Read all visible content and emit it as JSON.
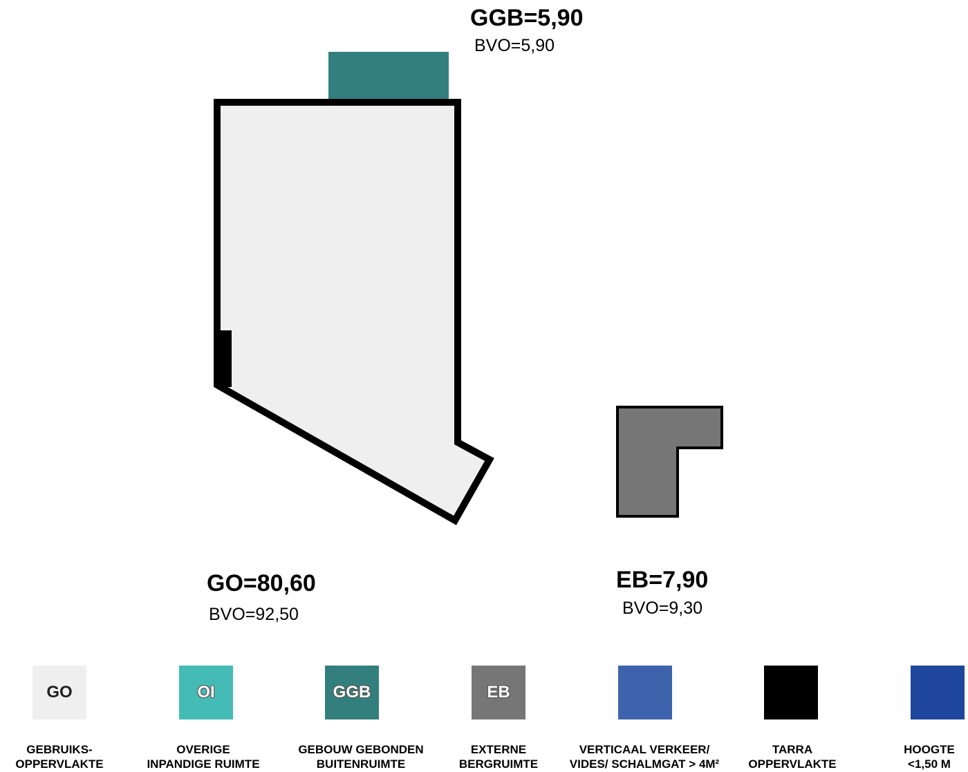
{
  "areas": {
    "ggb": {
      "title": "GGB=5,90",
      "bvo": "BVO=5,90"
    },
    "go": {
      "title": "GO=80,60",
      "bvo": "BVO=92,50"
    },
    "eb": {
      "title": "EB=7,90",
      "bvo": "BVO=9,30"
    }
  },
  "colors": {
    "go": "#efefef",
    "oi": "#45bbb5",
    "ggb": "#337f7e",
    "eb": "#767676",
    "verticaal": "#3e63ad",
    "tarra": "#000000",
    "hoogte": "#1d469c"
  },
  "legend": [
    {
      "code": "GO",
      "color": "#efefef",
      "line1": "GEBRUIKS-",
      "line2": "OPPERVLAKTE"
    },
    {
      "code": "OI",
      "color": "#45bbb5",
      "line1": "OVERIGE",
      "line2": "INPANDIGE RUIMTE"
    },
    {
      "code": "GGB",
      "color": "#337f7e",
      "line1": "GEBOUW GEBONDEN",
      "line2": "BUITENRUIMTE"
    },
    {
      "code": "EB",
      "color": "#767676",
      "line1": "EXTERNE",
      "line2": "BERGRUIMTE"
    },
    {
      "code": "",
      "color": "#3e63ad",
      "line1": "VERTICAAL VERKEER/",
      "line2": "VIDES/ SCHALMGAT > 4M²"
    },
    {
      "code": "",
      "color": "#000000",
      "line1": "TARRA",
      "line2": "OPPERVLAKTE"
    },
    {
      "code": "",
      "color": "#1d469c",
      "line1": "HOOGTE",
      "line2": "<1,50 M"
    }
  ]
}
